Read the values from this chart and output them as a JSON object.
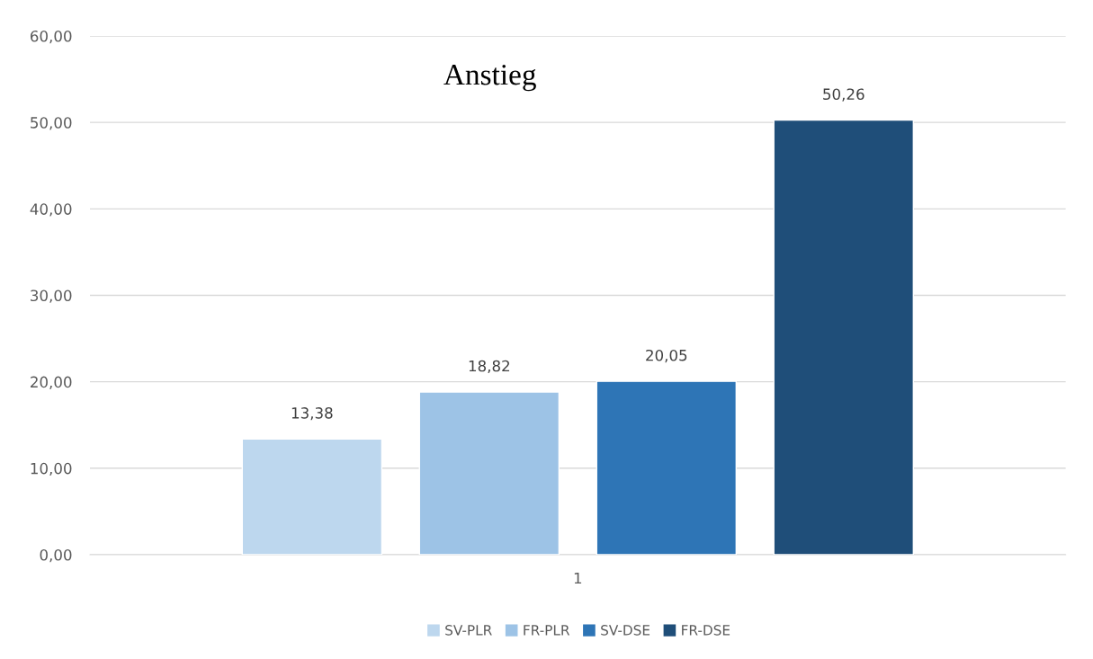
{
  "chart_data": {
    "type": "bar",
    "title": "Anstieg",
    "categories": [
      "1"
    ],
    "series": [
      {
        "name": "SV-PLR",
        "color": "#bdd7ee",
        "values": [
          13.38
        ],
        "value_labels": [
          "13,38"
        ]
      },
      {
        "name": "FR-PLR",
        "color": "#9dc3e6",
        "values": [
          18.82
        ],
        "value_labels": [
          "18,82"
        ]
      },
      {
        "name": "SV-DSE",
        "color": "#2e75b6",
        "values": [
          20.05
        ],
        "value_labels": [
          "20,05"
        ]
      },
      {
        "name": "FR-DSE",
        "color": "#1f4e79",
        "values": [
          50.26
        ],
        "value_labels": [
          "50,26"
        ]
      }
    ],
    "ylim": [
      0,
      60
    ],
    "yticks": [
      {
        "value": 0,
        "label": "0,00"
      },
      {
        "value": 10,
        "label": "10,00"
      },
      {
        "value": 20,
        "label": "20,00"
      },
      {
        "value": 30,
        "label": "30,00"
      },
      {
        "value": 40,
        "label": "40,00"
      },
      {
        "value": 50,
        "label": "50,00"
      },
      {
        "value": 60,
        "label": "60,00"
      }
    ],
    "grid": "y",
    "legend": "bottom"
  }
}
